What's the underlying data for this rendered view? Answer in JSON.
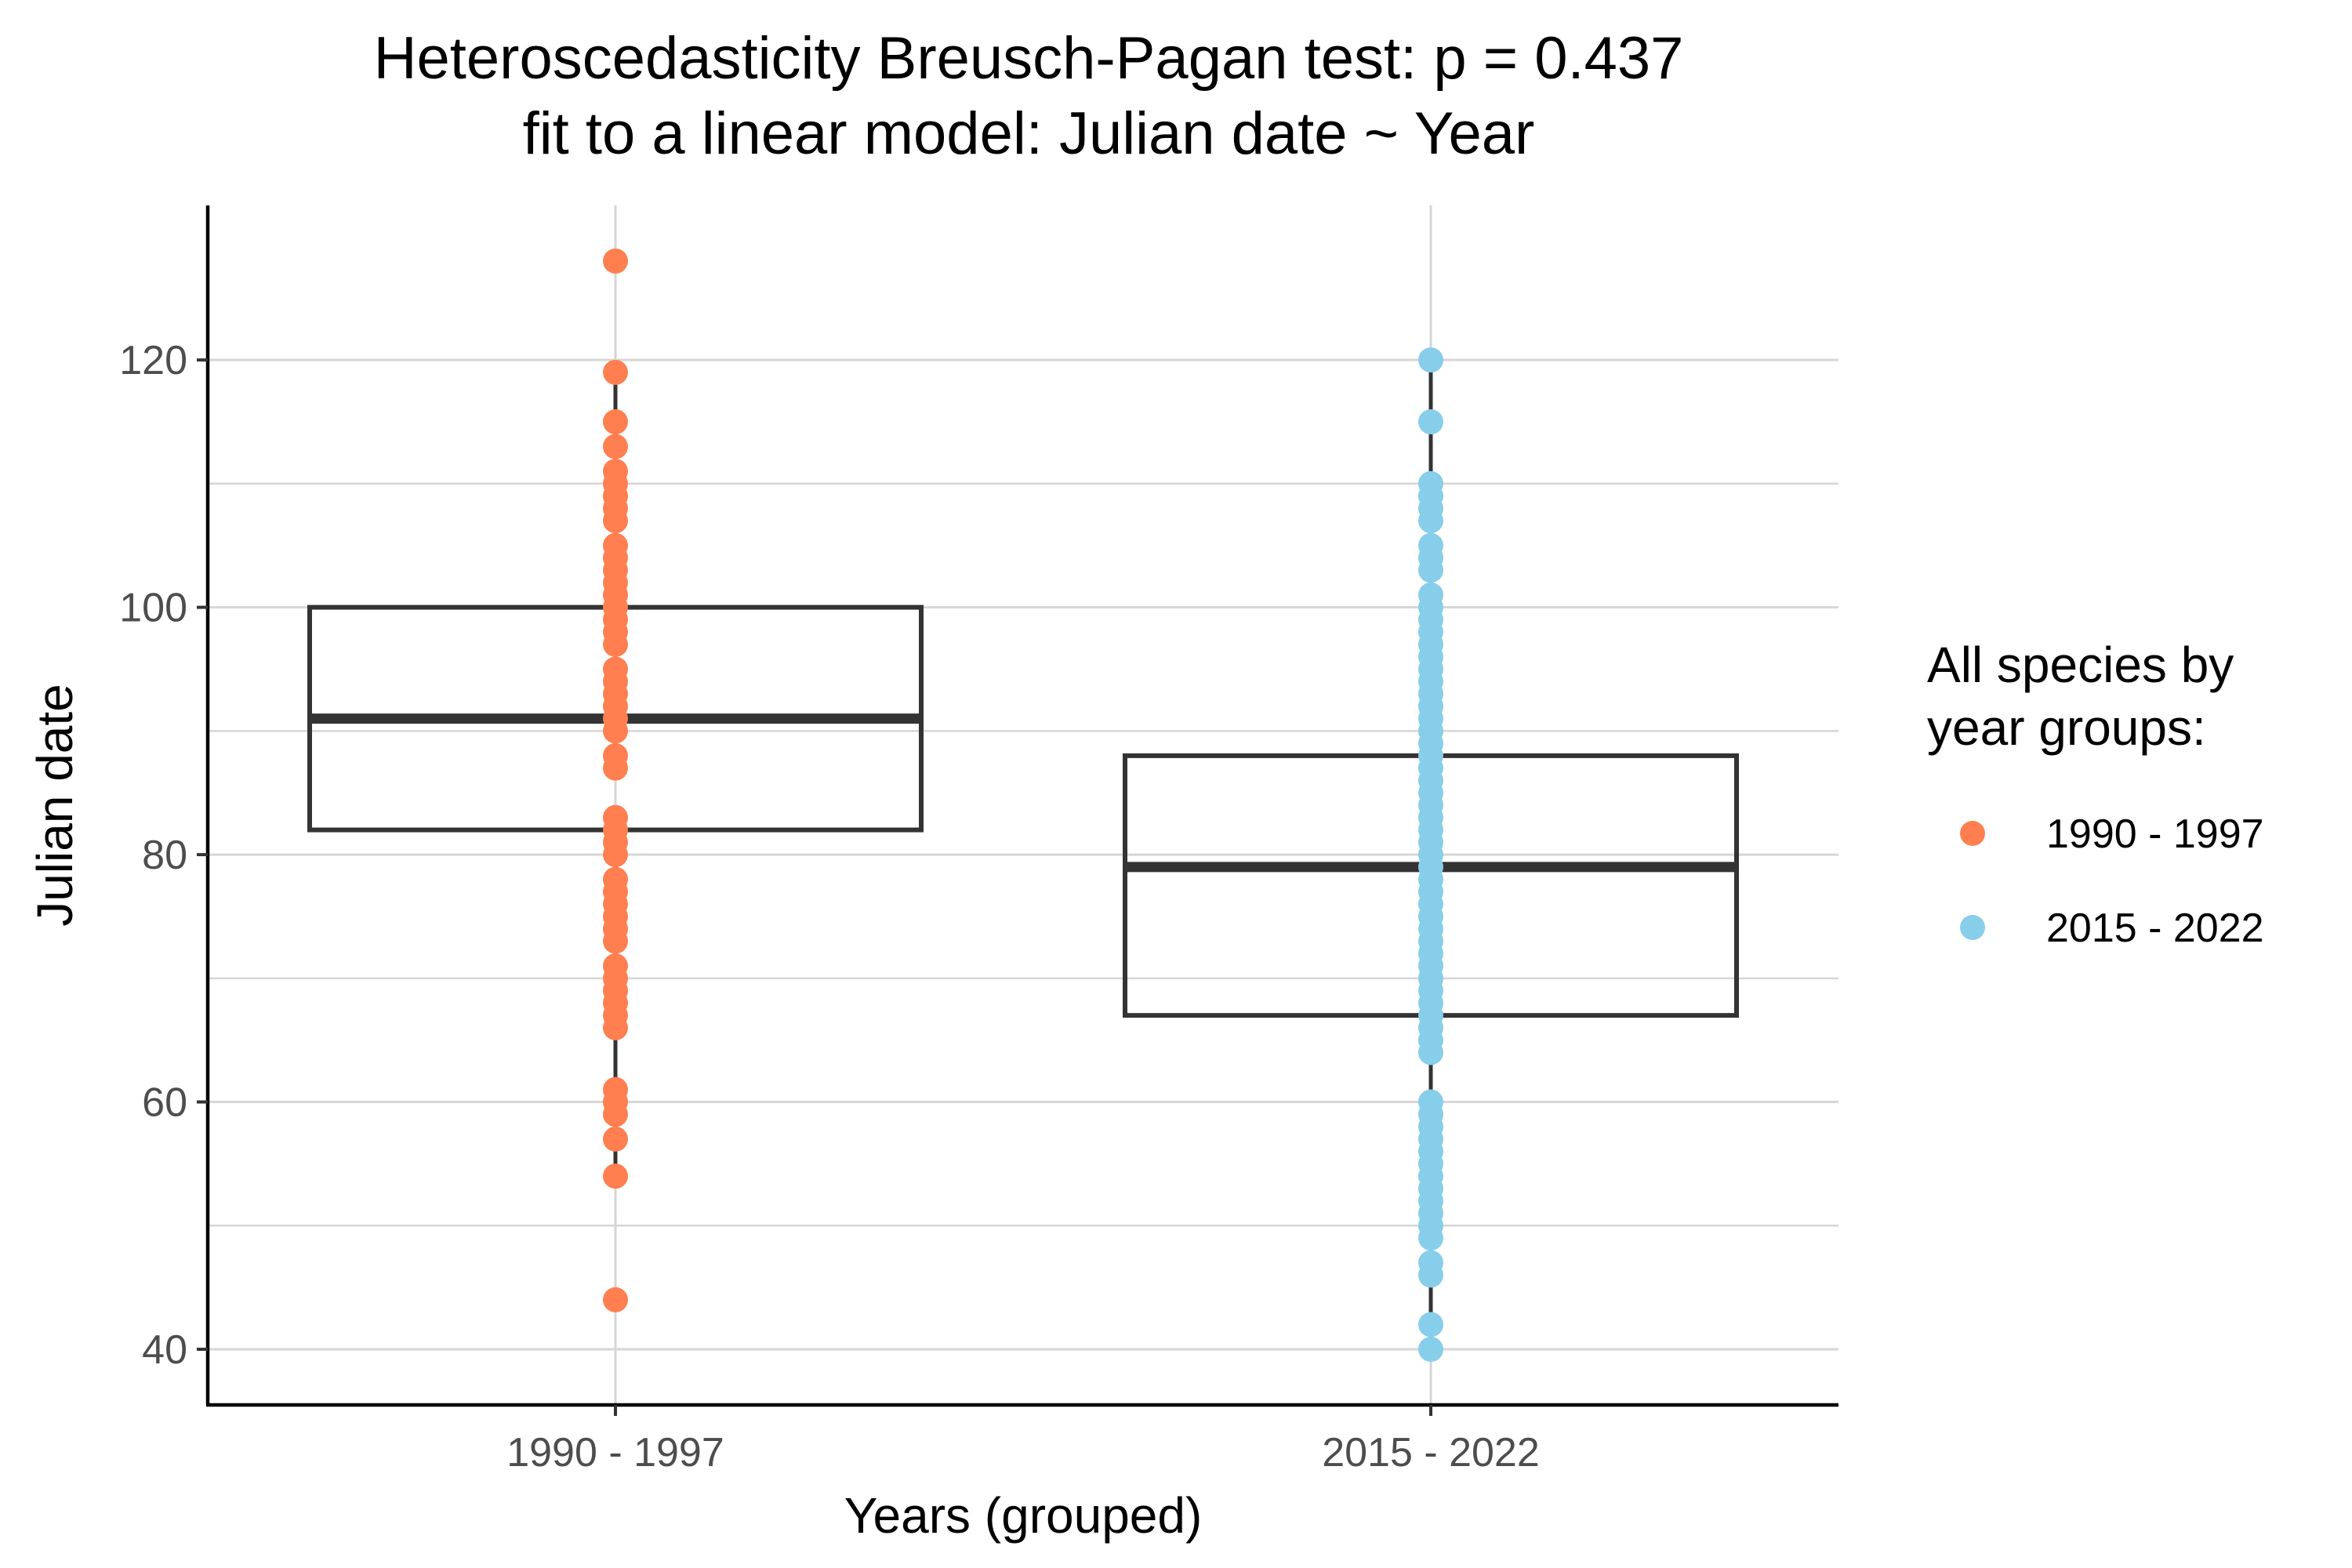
{
  "chart_data": {
    "type": "box",
    "title": "Heteroscedasticity Breusch-Pagan test: p = 0.437",
    "subtitle": "fit to a linear model: Julian date ~ Year",
    "xlabel": "Years (grouped)",
    "ylabel": "Julian date",
    "categories": [
      "1990 - 1997",
      "2015 - 2022"
    ],
    "ylim": [
      35.5,
      132.5
    ],
    "yticks": [
      40,
      60,
      80,
      100,
      120
    ],
    "grid": true,
    "legend": {
      "title_lines": [
        "All species by",
        "year groups:"
      ],
      "placement": "right",
      "entries": [
        {
          "label": "1990 - 1997",
          "color": "#FF7F50"
        },
        {
          "label": "2015 - 2022",
          "color": "#87CEEB"
        }
      ]
    },
    "box_color": "#333333",
    "series": [
      {
        "name": "1990 - 1997",
        "color": "#FF7F50",
        "box": {
          "q1": 82,
          "median": 91,
          "q3": 100,
          "whisker_low": 54,
          "whisker_high": 119
        },
        "points": [
          44,
          54,
          57,
          59,
          60,
          61,
          66,
          67,
          68,
          69,
          70,
          71,
          73,
          74,
          75,
          76,
          77,
          78,
          80,
          81,
          82,
          83,
          87,
          88,
          90,
          91,
          92,
          93,
          94,
          95,
          97,
          98,
          99,
          100,
          101,
          102,
          103,
          104,
          105,
          107,
          108,
          109,
          110,
          111,
          113,
          115,
          119,
          128
        ]
      },
      {
        "name": "2015 - 2022",
        "color": "#87CEEB",
        "box": {
          "q1": 67,
          "median": 79,
          "q3": 88,
          "whisker_low": 40,
          "whisker_high": 120
        },
        "points": [
          40,
          42,
          46,
          47,
          49,
          50,
          51,
          52,
          53,
          54,
          55,
          56,
          57,
          58,
          59,
          60,
          64,
          65,
          66,
          67,
          68,
          69,
          70,
          71,
          72,
          73,
          74,
          75,
          76,
          77,
          78,
          79,
          80,
          81,
          82,
          83,
          84,
          85,
          86,
          87,
          88,
          89,
          90,
          91,
          92,
          93,
          94,
          95,
          96,
          97,
          98,
          99,
          100,
          101,
          103,
          104,
          105,
          107,
          108,
          109,
          110,
          115,
          120
        ]
      }
    ]
  }
}
